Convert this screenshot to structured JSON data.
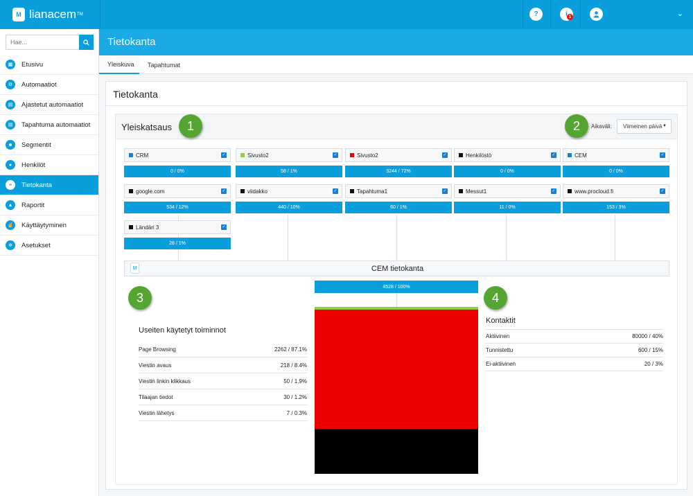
{
  "app": {
    "logo_text": "lianacem",
    "logo_tm": "TM",
    "logo_badge": "M"
  },
  "topbar": {
    "help_icon": "?",
    "notif_icon": "i",
    "notif_count": "1",
    "user_icon": "person-icon",
    "chevron": "⌄"
  },
  "search": {
    "placeholder": "Hae...",
    "value": "Hae..."
  },
  "sidebar": {
    "items": [
      {
        "label": "Etusivu",
        "icon": "dashboard-icon",
        "glyph": "▦",
        "active": false
      },
      {
        "label": "Automaatiot",
        "icon": "automation-icon",
        "glyph": "⚙",
        "active": false
      },
      {
        "label": "Ajastetut automaatiot",
        "icon": "calendar-icon",
        "glyph": "▤",
        "active": false
      },
      {
        "label": "Tapahtuma automaatiot",
        "icon": "calendar-icon",
        "glyph": "▤",
        "active": false
      },
      {
        "label": "Segmentit",
        "icon": "segments-icon",
        "glyph": "☻",
        "active": false
      },
      {
        "label": "Henkilöt",
        "icon": "person-icon",
        "glyph": "●",
        "active": false
      },
      {
        "label": "Tietokanta",
        "icon": "database-icon",
        "glyph": "≡",
        "active": true
      },
      {
        "label": "Raportit",
        "icon": "chart-icon",
        "glyph": "▲",
        "active": false
      },
      {
        "label": "Käyttäytyminen",
        "icon": "pointer-icon",
        "glyph": "☝",
        "active": false
      },
      {
        "label": "Asetukset",
        "icon": "settings-icon",
        "glyph": "✲",
        "active": false
      }
    ]
  },
  "page": {
    "title": "Tietokanta",
    "tabs": [
      "Yleiskuva",
      "Tapahtumat"
    ],
    "card_title": "Tietokanta"
  },
  "overview": {
    "title": "Yleiskatsaus",
    "markers": [
      "1",
      "2",
      "3",
      "4"
    ],
    "range_label": "Aikaväli:",
    "range_value": "Viimeinen päivä",
    "sources": [
      {
        "name": "CRM",
        "color": "#1b7fd1",
        "bar": "0 / 0%"
      },
      {
        "name": "Sivusto2",
        "color": "#8fd13a",
        "bar": "58 / 1%"
      },
      {
        "name": "Sivusto2",
        "color": "#ee0000",
        "bar": "3244 / 72%"
      },
      {
        "name": "Henkilöstö",
        "color": "#111111",
        "bar": "0 / 0%"
      },
      {
        "name": "CEM",
        "color": "#1b7fd1",
        "bar": "0 / 0%"
      },
      {
        "name": "google.com",
        "color": "#111111",
        "bar": "534 / 12%"
      },
      {
        "name": "viidakko",
        "color": "#111111",
        "bar": "440 / 10%"
      },
      {
        "name": "Tapahtuma1",
        "color": "#111111",
        "bar": "60 / 1%"
      },
      {
        "name": "Messut1",
        "color": "#111111",
        "bar": "11 / 0%"
      },
      {
        "name": "www.procloud.fi",
        "color": "#111111",
        "bar": "153 / 3%"
      },
      {
        "name": "Ländäri 3",
        "color": "#111111",
        "bar": "28 / 1%"
      }
    ],
    "cem": {
      "title": "CEM tietokanta",
      "logo": "M",
      "bar": "4528 / 100%",
      "stack": [
        {
          "color": "#8fd13a",
          "value": 1
        },
        {
          "color": "#ee0000",
          "value": 72
        },
        {
          "color": "#000000",
          "value": 27
        }
      ]
    },
    "actions": {
      "title": "Useiten käytetyt toiminnot",
      "rows": [
        {
          "label": "Page Browsing",
          "value": "2262 / 87.1%"
        },
        {
          "label": "Viestin avaus",
          "value": "218 / 8.4%"
        },
        {
          "label": "Viestin linkin klikkaus",
          "value": "50 / 1.9%"
        },
        {
          "label": "Tilaajan tiedot",
          "value": "30 / 1.2%"
        },
        {
          "label": "Viestin lähetys",
          "value": "7 / 0.3%"
        }
      ]
    },
    "contacts": {
      "title": "Kontaktit",
      "rows": [
        {
          "label": "Aktiivinen",
          "value": "80000 / 40%"
        },
        {
          "label": "Tunnistettu",
          "value": "600 / 15%"
        },
        {
          "label": "Ei-aktiivinen",
          "value": "20 / 3%"
        }
      ]
    }
  }
}
